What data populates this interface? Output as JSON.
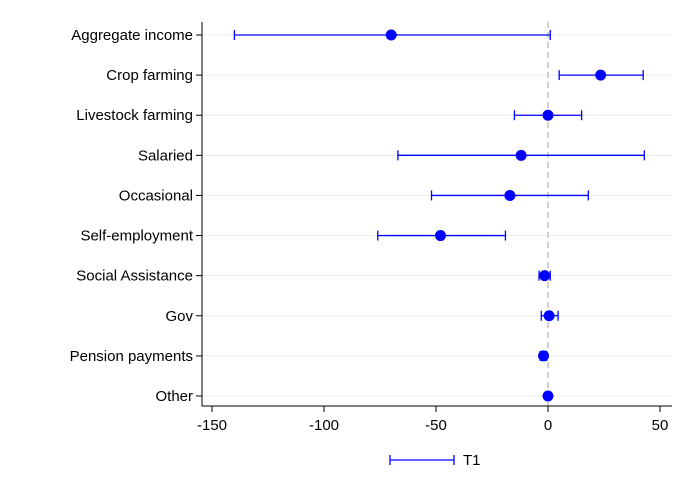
{
  "chart_data": {
    "type": "scatter",
    "subtype": "coefficient-plot-with-confidence-intervals",
    "orientation": "horizontal",
    "categories": [
      "Aggregate income",
      "Crop farming",
      "Livestock farming",
      "Salaried",
      "Occasional",
      "Self-employment",
      "Social Assistance",
      "Gov",
      "Pension payments",
      "Other"
    ],
    "series": [
      {
        "name": "T1",
        "color": "#0000ff",
        "estimates": [
          -70,
          23.5,
          0,
          -12,
          -17,
          -48,
          -1.5,
          0.5,
          -2,
          0
        ],
        "ci_low": [
          -140,
          5,
          -15,
          -67,
          -52,
          -76,
          -4,
          -3,
          -3.5,
          -0.5
        ],
        "ci_high": [
          1,
          42.5,
          15,
          43,
          18,
          -19,
          1,
          4.5,
          -0.5,
          0.5
        ]
      }
    ],
    "xlim": [
      -150,
      50
    ],
    "xticks": [
      -150,
      -100,
      -50,
      0,
      50
    ],
    "reference_line": {
      "x": 0,
      "style": "dashed",
      "color": "#b0b0b0"
    },
    "grid": "horizontal",
    "legend": {
      "position": "bottom-center",
      "entries": [
        "T1"
      ]
    },
    "title": "",
    "xlabel": "",
    "ylabel": ""
  }
}
